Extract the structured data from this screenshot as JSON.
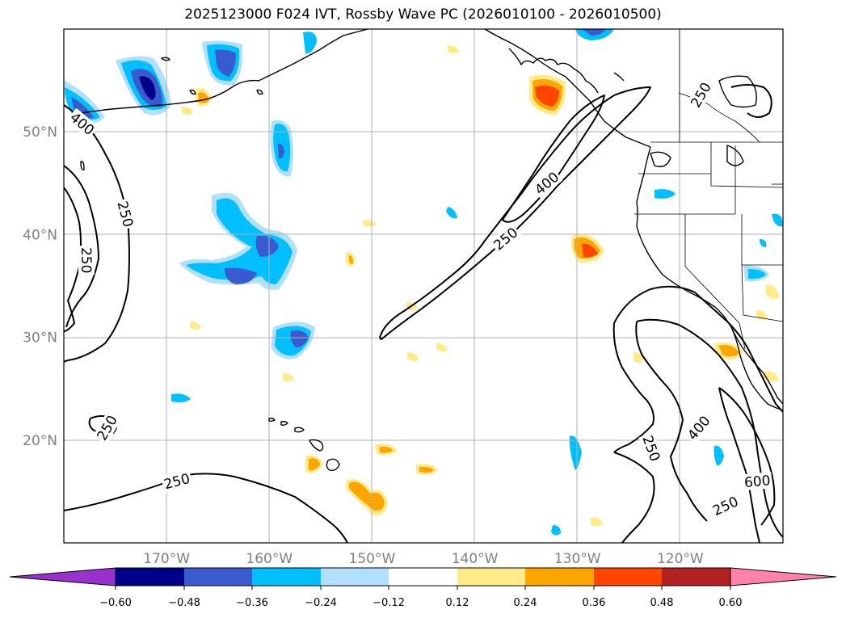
{
  "title": "2025123000 F024 IVT, Rossby Wave PC (2026010100 - 2026010500)",
  "map": {
    "lon_range": [
      -180,
      -110
    ],
    "lat_range": [
      10,
      60
    ],
    "lon_labels": [
      "170°W",
      "160°W",
      "150°W",
      "140°W",
      "130°W",
      "120°W"
    ],
    "lat_labels": [
      "50°N",
      "40°N",
      "30°N",
      "20°N"
    ],
    "contour_levels": [
      "250",
      "400",
      "600"
    ],
    "contour_labels": [
      {
        "text": "400",
        "lon": -178.2,
        "lat": 50.8,
        "rot": 40
      },
      {
        "text": "250",
        "lon": -174.0,
        "lat": 42.0,
        "rot": 75
      },
      {
        "text": "250",
        "lon": -177.8,
        "lat": 37.5,
        "rot": 90
      },
      {
        "text": "250",
        "lon": -175.8,
        "lat": 21.2,
        "rot": -60
      },
      {
        "text": "250",
        "lon": -169.0,
        "lat": 16.0,
        "rot": -15
      },
      {
        "text": "400",
        "lon": -133.0,
        "lat": 45.0,
        "rot": -40
      },
      {
        "text": "250",
        "lon": -137.0,
        "lat": 39.6,
        "rot": -40
      },
      {
        "text": "250",
        "lon": -118.0,
        "lat": 53.6,
        "rot": -60
      },
      {
        "text": "250",
        "lon": -122.8,
        "lat": 19.2,
        "rot": 70
      },
      {
        "text": "400",
        "lon": -118.2,
        "lat": 21.2,
        "rot": -50
      },
      {
        "text": "600",
        "lon": -112.5,
        "lat": 16.0,
        "rot": -5
      },
      {
        "text": "250",
        "lon": -115.6,
        "lat": 13.6,
        "rot": -25
      }
    ],
    "colors": {
      "neg_060": "#9932cc",
      "neg_048": "#00008b",
      "neg_036": "#3a5bd0",
      "neg_024": "#00bfff",
      "neg_012": "#b0e0fb",
      "neutral": "#ffffff",
      "pos_012": "#ffeb8a",
      "pos_024": "#ffa500",
      "pos_036": "#ff4500",
      "pos_048": "#b22222",
      "pos_060": "#ff82ab"
    }
  },
  "colorbar": {
    "ticks": [
      "−0.60",
      "−0.48",
      "−0.36",
      "−0.24",
      "−0.12",
      "0.12",
      "0.24",
      "0.36",
      "0.48",
      "0.60"
    ],
    "values": [
      -0.6,
      -0.48,
      -0.36,
      -0.24,
      -0.12,
      0.12,
      0.24,
      0.36,
      0.48,
      0.6
    ]
  }
}
